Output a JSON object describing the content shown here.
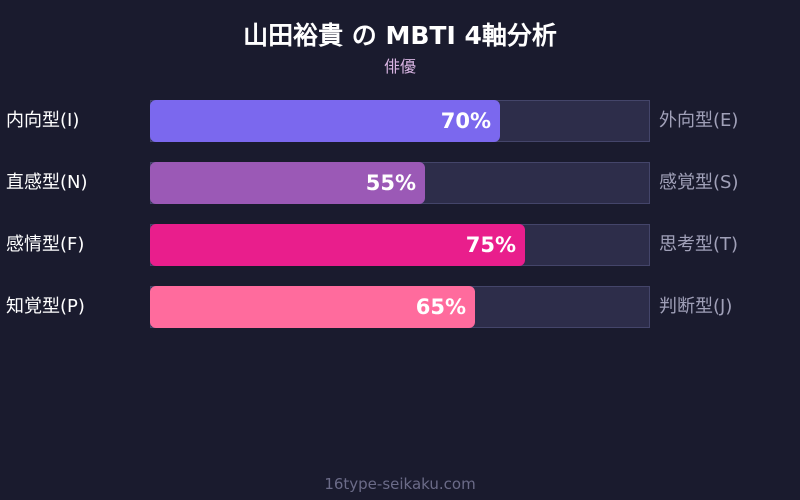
{
  "title": "山田裕貴 の MBTI 4軸分析",
  "subtitle": "俳優",
  "footer": "16type-seikaku.com",
  "chart_data": {
    "type": "bar",
    "orientation": "horizontal",
    "xlim": [
      0,
      100
    ],
    "rows": [
      {
        "left": "内向型(I)",
        "right": "外向型(E)",
        "value": 70,
        "label": "70%",
        "color": "#7b68ee"
      },
      {
        "left": "直感型(N)",
        "right": "感覚型(S)",
        "value": 55,
        "label": "55%",
        "color": "#9b59b6"
      },
      {
        "left": "感情型(F)",
        "right": "思考型(T)",
        "value": 75,
        "label": "75%",
        "color": "#e91e8c"
      },
      {
        "left": "知覚型(P)",
        "right": "判断型(J)",
        "value": 65,
        "label": "65%",
        "color": "#ff6b9d"
      }
    ]
  }
}
